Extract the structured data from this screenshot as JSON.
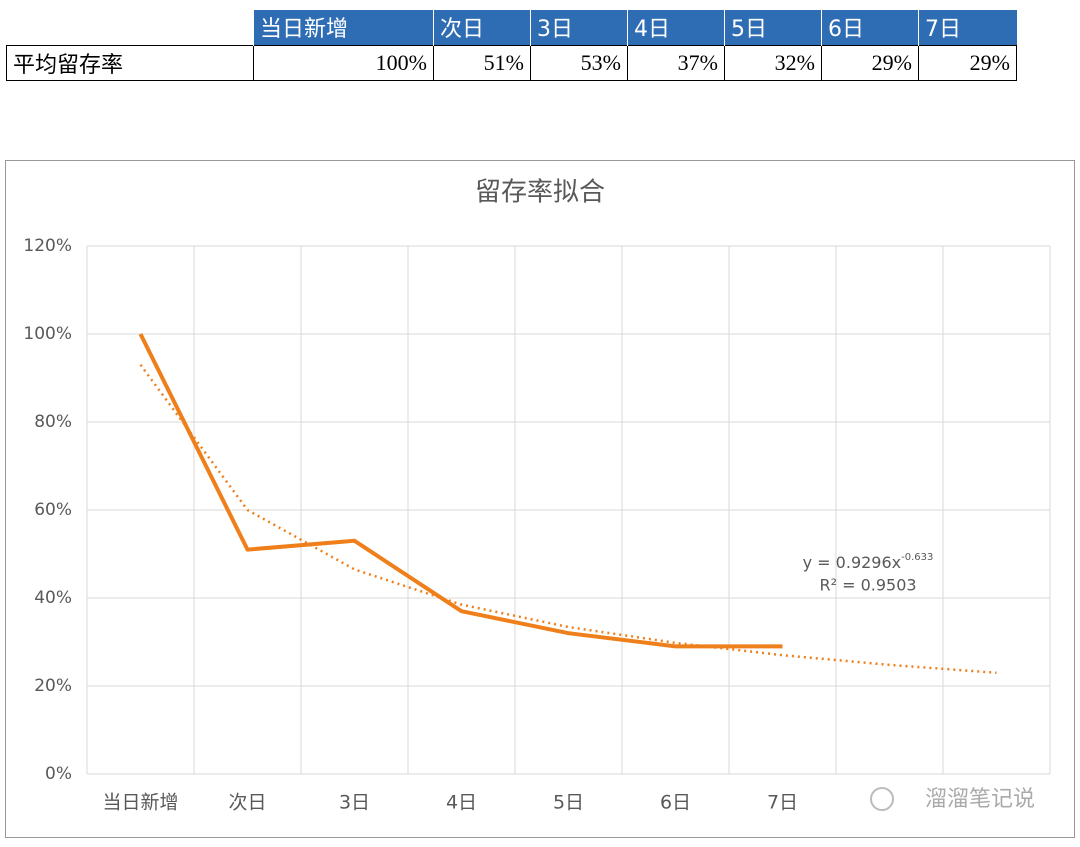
{
  "table": {
    "header": [
      "当日新增",
      "次日",
      "3日",
      "4日",
      "5日",
      "6日",
      "7日"
    ],
    "row_label": "平均留存率",
    "row": [
      "100%",
      "51%",
      "53%",
      "37%",
      "32%",
      "29%",
      "29%"
    ]
  },
  "chart_data": {
    "type": "line",
    "title": "留存率拟合",
    "categories": [
      "当日新增",
      "次日",
      "3日",
      "4日",
      "5日",
      "6日",
      "7日",
      null,
      null
    ],
    "series": [
      {
        "color": "#ef7f1a",
        "values": [
          100,
          51,
          53,
          37,
          32,
          29,
          29,
          null,
          null
        ]
      },
      {
        "color": "#ef7f1a",
        "style": "dotted",
        "values": [
          93,
          60,
          46.5,
          38.5,
          33.4,
          29.8,
          27,
          24.8,
          23
        ]
      }
    ],
    "ylim": [
      0,
      120
    ],
    "yticks": [
      {
        "value": 0,
        "label": "0%"
      },
      {
        "value": 20,
        "label": "20%"
      },
      {
        "value": 40,
        "label": "40%"
      },
      {
        "value": 60,
        "label": "60%"
      },
      {
        "value": 80,
        "label": "80%"
      },
      {
        "value": 100,
        "label": "100%"
      },
      {
        "value": 120,
        "label": "120%"
      }
    ],
    "grid": true,
    "annotations": [
      "y = 0.9296x",
      "-0.633",
      "R² = 0.9503"
    ]
  },
  "watermark": "溜溜笔记说"
}
